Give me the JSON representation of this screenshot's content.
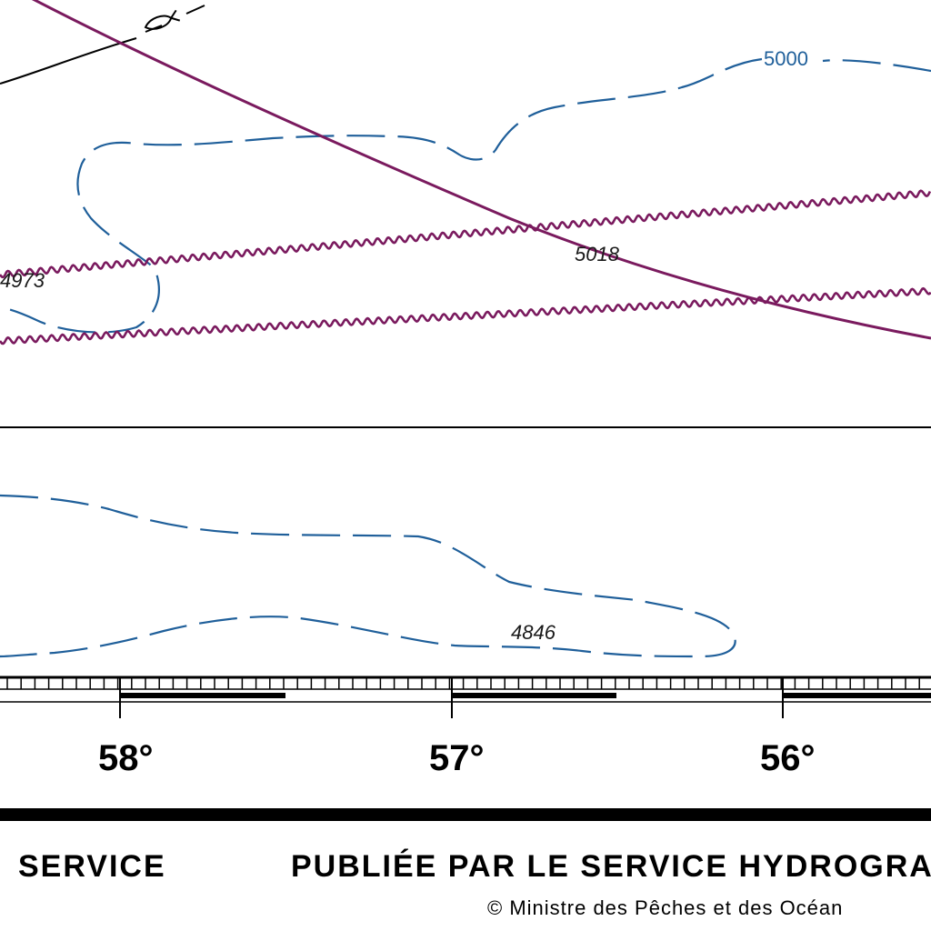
{
  "chart": {
    "soundings": [
      "4973",
      "5018",
      "4846"
    ],
    "contour_label": "5000",
    "longitudes": [
      "58°",
      "57°",
      "56°"
    ],
    "colors": {
      "contour": "#1f5f9a",
      "cable": "#7a1a5e",
      "ink": "#000000"
    }
  },
  "footer": {
    "left_text": "SERVICE",
    "publisher_text": "PUBLIÉE PAR LE SERVICE HYDROGRA",
    "copyright_text": "© Ministre des Pêches et des Océan"
  }
}
